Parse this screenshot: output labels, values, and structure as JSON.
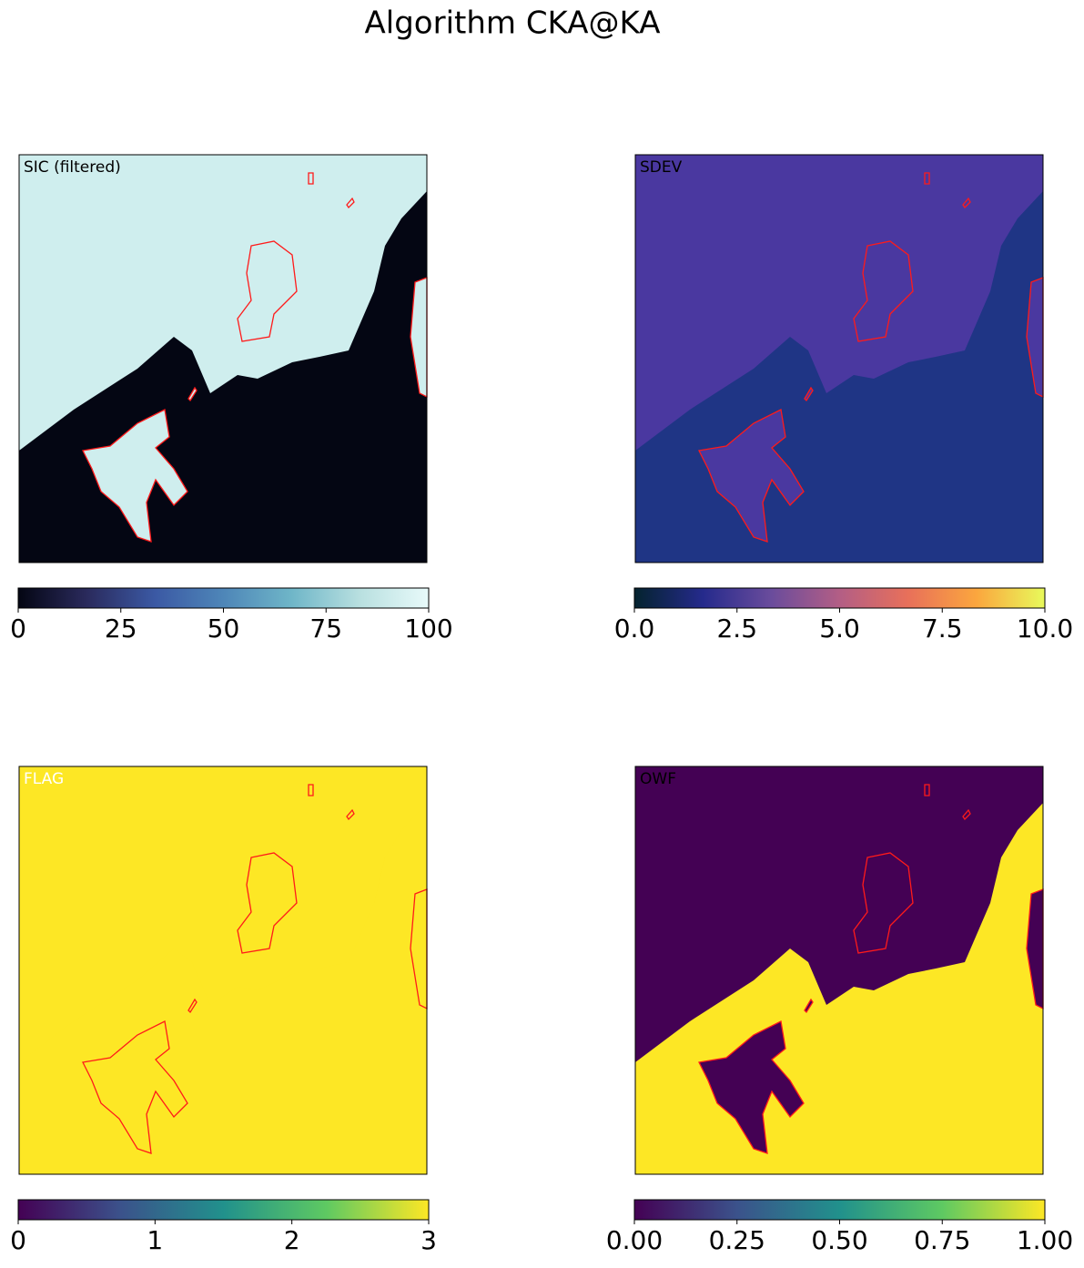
{
  "title": "Algorithm CKA@KA",
  "chart_data": [
    {
      "type": "image",
      "label": "SIC (filtered)",
      "label_color": "#000000",
      "cmap": [
        "#040613",
        "#2a2a5c",
        "#3b59a4",
        "#4e86b8",
        "#6fb6c8",
        "#b9e0e0",
        "#e8fafa"
      ],
      "clim": [
        0,
        100
      ],
      "cticks": [
        0,
        25,
        50,
        75,
        100
      ]
    },
    {
      "type": "image",
      "label": "SDEV",
      "label_color": "#000000",
      "cmap": [
        "#04232e",
        "#252a8c",
        "#6a4c9c",
        "#b35e85",
        "#e8705a",
        "#fba63e",
        "#e8fa5b"
      ],
      "clim": [
        0,
        10
      ],
      "cticks": [
        {
          "value": 0,
          "label": "0.0"
        },
        {
          "value": 2.5,
          "label": "2.5"
        },
        {
          "value": 5,
          "label": "5.0"
        },
        {
          "value": 7.5,
          "label": "7.5"
        },
        {
          "value": 10,
          "label": "10.0"
        }
      ]
    },
    {
      "type": "image",
      "label": "FLAG",
      "label_color": "#ffffff",
      "cmap": [
        "#440154",
        "#3b528b",
        "#21918c",
        "#5ec962",
        "#fde725"
      ],
      "clim": [
        0,
        3
      ],
      "cticks": [
        0,
        1,
        2,
        3
      ]
    },
    {
      "type": "image",
      "label": "OWF",
      "label_color": "#000000",
      "cmap": [
        "#440154",
        "#3b528b",
        "#21918c",
        "#5ec962",
        "#fde725"
      ],
      "clim": [
        0,
        1
      ],
      "cticks": [
        {
          "value": 0,
          "label": "0.00"
        },
        {
          "value": 0.25,
          "label": "0.25"
        },
        {
          "value": 0.5,
          "label": "0.50"
        },
        {
          "value": 0.75,
          "label": "0.75"
        },
        {
          "value": 1,
          "label": "1.00"
        }
      ]
    }
  ]
}
